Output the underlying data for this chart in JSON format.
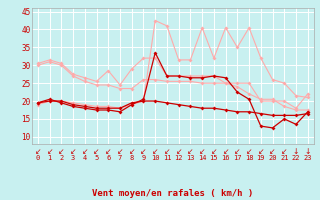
{
  "x": [
    0,
    1,
    2,
    3,
    4,
    5,
    6,
    7,
    8,
    9,
    10,
    11,
    12,
    13,
    14,
    15,
    16,
    17,
    18,
    19,
    20,
    21,
    22,
    23
  ],
  "line1": [
    19.5,
    20.5,
    19.5,
    18.5,
    18.0,
    17.5,
    17.5,
    17.0,
    19.0,
    20.5,
    33.5,
    27.0,
    27.0,
    26.5,
    26.5,
    27.0,
    26.5,
    22.5,
    20.5,
    13.0,
    12.5,
    15.0,
    13.5,
    17.0
  ],
  "line2": [
    19.5,
    20.0,
    20.0,
    19.0,
    18.5,
    18.0,
    18.0,
    18.0,
    19.5,
    20.0,
    20.0,
    19.5,
    19.0,
    18.5,
    18.0,
    18.0,
    17.5,
    17.0,
    17.0,
    16.5,
    16.0,
    16.0,
    16.0,
    16.5
  ],
  "line3": [
    30.5,
    31.5,
    30.5,
    27.5,
    26.5,
    25.5,
    28.5,
    24.5,
    29.0,
    32.0,
    32.0,
    27.0,
    27.0,
    27.0,
    27.0,
    27.0,
    25.0,
    24.0,
    22.0,
    20.5,
    20.5,
    18.5,
    17.5,
    17.5
  ],
  "line4": [
    30.0,
    31.0,
    30.0,
    27.0,
    25.5,
    24.5,
    24.5,
    23.5,
    23.5,
    26.0,
    26.0,
    25.5,
    25.5,
    25.5,
    25.0,
    25.0,
    25.0,
    25.0,
    25.0,
    20.0,
    20.0,
    20.0,
    18.0,
    22.0
  ],
  "line5": [
    19.0,
    20.0,
    20.0,
    19.5,
    19.0,
    18.5,
    18.5,
    18.0,
    19.0,
    20.0,
    42.5,
    41.0,
    31.5,
    31.5,
    40.5,
    32.0,
    40.5,
    35.0,
    40.5,
    32.0,
    26.0,
    25.0,
    21.5,
    21.0
  ],
  "ylim": [
    8,
    46
  ],
  "yticks": [
    10,
    15,
    20,
    25,
    30,
    35,
    40,
    45
  ],
  "xlabel": "Vent moyen/en rafales ( km/h )",
  "bg_color": "#c8f0f0",
  "grid_color": "#ffffff",
  "dark_red": "#cc0000",
  "light_pink": "#ffaaaa",
  "mid_pink": "#ff7777"
}
